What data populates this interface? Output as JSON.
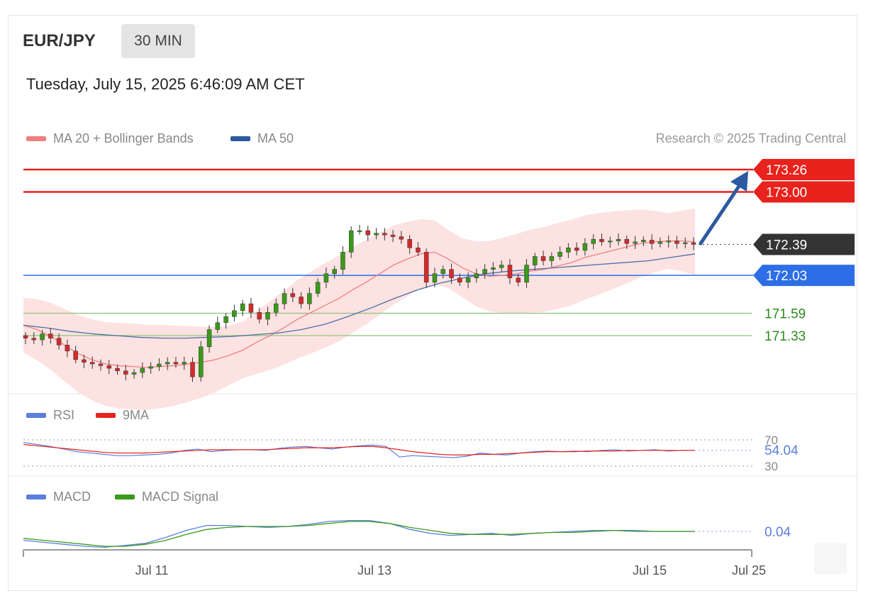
{
  "header": {
    "symbol": "EUR/JPY",
    "timeframe": "30 MIN",
    "datetime": "Tuesday, July 15, 2025 6:46:09 AM CET",
    "credit": "Research © 2025 Trading Central"
  },
  "legend_main": [
    {
      "label": "MA 20 + Bollinger Bands",
      "color": "#f08080"
    },
    {
      "label": "MA 50",
      "color": "#2c5aa0"
    }
  ],
  "legend_rsi": [
    {
      "label": "RSI",
      "color": "#5b7fe0"
    },
    {
      "label": "9MA",
      "color": "#e8221c"
    }
  ],
  "legend_macd": [
    {
      "label": "MACD",
      "color": "#5b7fe0"
    },
    {
      "label": "MACD Signal",
      "color": "#3a9a1a"
    }
  ],
  "chart_data": [
    {
      "type": "line",
      "panel": "price",
      "ylim": [
        170.6,
        173.4
      ],
      "xticks": [
        "Jul 11",
        "Jul 13",
        "Jul 15",
        "Jul 25"
      ],
      "levels": [
        {
          "label": "173.26",
          "value": 173.26,
          "kind": "resistance",
          "color": "#e8221c"
        },
        {
          "label": "173.00",
          "value": 173.0,
          "kind": "resistance",
          "color": "#e8221c"
        },
        {
          "label": "172.39",
          "value": 172.39,
          "kind": "last",
          "color": "#333333"
        },
        {
          "label": "172.03",
          "value": 172.03,
          "kind": "pivot",
          "color": "#2d6ee6"
        },
        {
          "label": "171.59",
          "value": 171.59,
          "kind": "support",
          "color": "#2e8b1e"
        },
        {
          "label": "171.33",
          "value": 171.33,
          "kind": "support",
          "color": "#2e8b1e"
        }
      ],
      "close": [
        171.3,
        171.28,
        171.35,
        171.3,
        171.22,
        171.15,
        171.05,
        171.02,
        171.0,
        170.98,
        170.95,
        170.92,
        170.88,
        170.9,
        170.95,
        170.97,
        171.0,
        171.02,
        171.0,
        171.02,
        170.85,
        171.2,
        171.4,
        171.48,
        171.55,
        171.62,
        171.7,
        171.6,
        171.52,
        171.6,
        171.7,
        171.82,
        171.78,
        171.7,
        171.82,
        171.95,
        172.05,
        172.1,
        172.3,
        172.55,
        172.55,
        172.5,
        172.52,
        172.5,
        172.48,
        172.45,
        172.35,
        172.3,
        171.95,
        172.05,
        172.1,
        172.0,
        171.95,
        172.0,
        172.05,
        172.1,
        172.12,
        172.15,
        172.0,
        171.95,
        172.15,
        172.25,
        172.2,
        172.25,
        172.3,
        172.35,
        172.32,
        172.4,
        172.45,
        172.42,
        172.43,
        172.45,
        172.4,
        172.42,
        172.44,
        172.4,
        172.42,
        172.43,
        172.4,
        172.41,
        172.39
      ],
      "ma20": [
        171.45,
        171.4,
        171.32,
        171.22,
        171.12,
        171.05,
        171.0,
        170.98,
        170.97,
        170.96,
        170.97,
        170.98,
        171.0,
        171.02,
        171.05,
        171.1,
        171.16,
        171.25,
        171.33,
        171.42,
        171.52,
        171.6,
        171.68,
        171.76,
        171.86,
        171.95,
        172.05,
        172.15,
        172.22,
        172.28,
        172.3,
        172.22,
        172.12,
        172.05,
        172.02,
        172.03,
        172.05,
        172.08,
        172.1,
        172.14,
        172.18,
        172.24,
        172.28,
        172.32,
        172.36,
        172.4,
        172.42,
        172.43,
        172.43,
        172.42
      ],
      "ma50": [
        171.45,
        171.42,
        171.38,
        171.35,
        171.33,
        171.31,
        171.3,
        171.3,
        171.31,
        171.32,
        171.34,
        171.36,
        171.4,
        171.46,
        171.55,
        171.65,
        171.76,
        171.86,
        171.94,
        172.0,
        172.05,
        172.08,
        172.1,
        172.12,
        172.14,
        172.16,
        172.18,
        172.2,
        172.24,
        172.28
      ]
    },
    {
      "type": "line",
      "panel": "rsi",
      "ylim": [
        30,
        70
      ],
      "yticks": [
        30,
        70
      ],
      "last_label": "54.04",
      "series": [
        {
          "name": "RSI",
          "values": [
            66,
            63,
            60,
            56,
            52,
            50,
            48,
            46,
            46,
            47,
            48,
            50,
            54,
            56,
            52,
            54,
            55,
            55,
            54,
            57,
            59,
            60,
            58,
            56,
            59,
            61,
            62,
            60,
            44,
            46,
            45,
            44,
            43,
            45,
            50,
            48,
            47,
            50,
            52,
            53,
            52,
            53,
            52,
            54,
            55,
            53,
            54,
            55,
            53,
            54,
            54
          ]
        },
        {
          "name": "9MA",
          "values": [
            63,
            61,
            59,
            57,
            55,
            53,
            51,
            50,
            50,
            50,
            51,
            52,
            53,
            54,
            55,
            55,
            55,
            55,
            55,
            56,
            57,
            58,
            58,
            58,
            59,
            60,
            60,
            58,
            55,
            52,
            50,
            48,
            47,
            47,
            48,
            48,
            49,
            50,
            51,
            52,
            52,
            52,
            53,
            53,
            53,
            54,
            54,
            54,
            54,
            54,
            54
          ]
        }
      ]
    },
    {
      "type": "line",
      "panel": "macd",
      "last_label": "0.04",
      "series": [
        {
          "name": "MACD",
          "values": [
            -0.05,
            -0.07,
            -0.09,
            -0.11,
            -0.12,
            -0.1,
            -0.08,
            -0.02,
            0.05,
            0.1,
            0.1,
            0.09,
            0.08,
            0.09,
            0.11,
            0.14,
            0.15,
            0.15,
            0.12,
            0.06,
            0.02,
            0.0,
            0.01,
            0.02,
            0.0,
            0.02,
            0.03,
            0.04,
            0.05,
            0.05,
            0.04,
            0.04,
            0.04,
            0.04
          ]
        },
        {
          "name": "MACD Signal",
          "values": [
            -0.03,
            -0.05,
            -0.07,
            -0.09,
            -0.11,
            -0.11,
            -0.09,
            -0.05,
            0.01,
            0.06,
            0.08,
            0.09,
            0.09,
            0.09,
            0.1,
            0.12,
            0.14,
            0.14,
            0.12,
            0.08,
            0.05,
            0.02,
            0.01,
            0.01,
            0.01,
            0.02,
            0.03,
            0.03,
            0.04,
            0.05,
            0.05,
            0.04,
            0.04,
            0.04
          ]
        }
      ]
    }
  ]
}
